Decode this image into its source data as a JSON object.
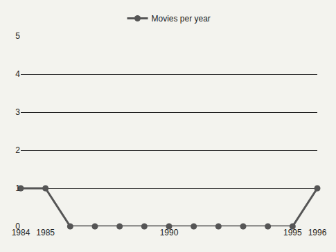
{
  "chart_data": {
    "type": "line",
    "x": [
      1984,
      1985,
      1986,
      1987,
      1988,
      1989,
      1990,
      1991,
      1992,
      1993,
      1994,
      1995,
      1996
    ],
    "series": [
      {
        "name": "Movies per year",
        "color": "#555555",
        "values": [
          1,
          1,
          0,
          0,
          0,
          0,
          0,
          0,
          0,
          0,
          0,
          0,
          1
        ]
      }
    ],
    "xlim": [
      1984,
      1996
    ],
    "xticks": [
      1984,
      1985,
      1990,
      1995,
      1996
    ],
    "ylim": [
      0,
      5
    ],
    "yticks": [
      0,
      1,
      2,
      3,
      4,
      5
    ],
    "grid": true,
    "legend": "top",
    "marker": "circle",
    "line_style": "solid"
  }
}
